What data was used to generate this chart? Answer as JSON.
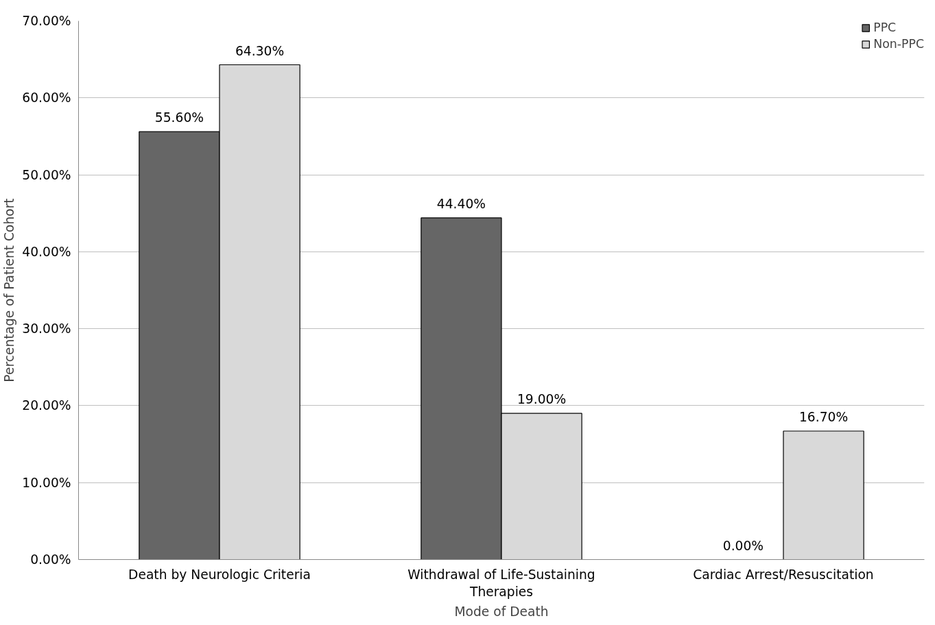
{
  "chart_data": {
    "type": "bar",
    "xlabel": "Mode of Death",
    "ylabel": "Percentage of Patient Cohort",
    "categories": [
      "Death by Neurologic Criteria",
      "Withdrawal of Life-Sustaining Therapies",
      "Cardiac Arrest/Resuscitation"
    ],
    "series": [
      {
        "name": "PPC",
        "color": "#666666",
        "values": [
          55.6,
          44.4,
          0
        ],
        "value_labels": [
          "55.60%",
          "44.40%",
          "0.00%"
        ]
      },
      {
        "name": "Non-PPC",
        "color": "#d9d9d9",
        "values": [
          64.3,
          19.0,
          16.7
        ],
        "value_labels": [
          "64.30%",
          "19.00%",
          "16.70%"
        ]
      }
    ],
    "ylim": [
      0,
      70
    ],
    "yticks": [
      {
        "value": 0,
        "label": "0.00%"
      },
      {
        "value": 10,
        "label": "10.00%"
      },
      {
        "value": 20,
        "label": "20.00%"
      },
      {
        "value": 30,
        "label": "30.00%"
      },
      {
        "value": 40,
        "label": "40.00%"
      },
      {
        "value": 50,
        "label": "50.00%"
      },
      {
        "value": 60,
        "label": "60.00%"
      },
      {
        "value": 70,
        "label": "70.00%"
      }
    ],
    "grid": "y",
    "legend": "top right"
  }
}
